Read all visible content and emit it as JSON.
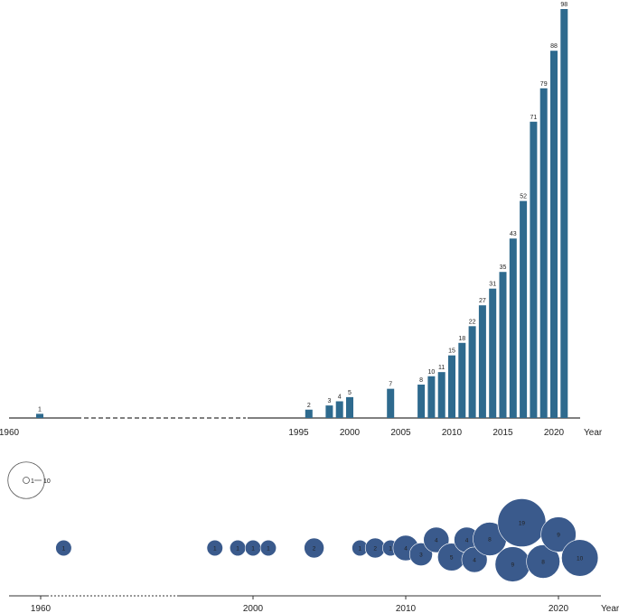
{
  "colors": {
    "bar": "#2e6a8e",
    "bubble": "#3a5a8c",
    "axis": "#333333",
    "text": "#222222",
    "legend_stroke": "#555555"
  },
  "chart_data": [
    {
      "type": "bar",
      "xlabel": "Year",
      "x_tick_labels": [
        "1960",
        "1995",
        "2000",
        "2005",
        "2010",
        "2015",
        "2020"
      ],
      "axis_break": {
        "from": 1960,
        "to": 1995,
        "style": "dashed"
      },
      "grid": false,
      "points": [
        {
          "x": 1961,
          "y": 1
        },
        {
          "x": 1996,
          "y": 2
        },
        {
          "x": 1998,
          "y": 3
        },
        {
          "x": 1999,
          "y": 4
        },
        {
          "x": 2000,
          "y": 5
        },
        {
          "x": 2004,
          "y": 7
        },
        {
          "x": 2007,
          "y": 8
        },
        {
          "x": 2008,
          "y": 10
        },
        {
          "x": 2009,
          "y": 11
        },
        {
          "x": 2010,
          "y": 15
        },
        {
          "x": 2011,
          "y": 18
        },
        {
          "x": 2012,
          "y": 22
        },
        {
          "x": 2013,
          "y": 27
        },
        {
          "x": 2014,
          "y": 31
        },
        {
          "x": 2015,
          "y": 35
        },
        {
          "x": 2016,
          "y": 43
        },
        {
          "x": 2017,
          "y": 52
        },
        {
          "x": 2018,
          "y": 71
        },
        {
          "x": 2019,
          "y": 79
        },
        {
          "x": 2020,
          "y": 88
        },
        {
          "x": 2021,
          "y": 98
        }
      ],
      "ylim": [
        0,
        98
      ]
    },
    {
      "type": "scatter",
      "xlabel": "Year",
      "x_tick_labels": [
        "1960",
        "2000",
        "2010",
        "2020"
      ],
      "axis_break": {
        "from": 1962,
        "to": 1996,
        "style": "dotted"
      },
      "size_legend": {
        "small": "1",
        "large": "10"
      },
      "grid": false,
      "points": [
        {
          "x": 1963,
          "count": 1,
          "label": "1"
        },
        {
          "x": 1997.5,
          "count": 1,
          "label": "1"
        },
        {
          "x": 1999,
          "count": 1,
          "label": "1"
        },
        {
          "x": 2000,
          "count": 1,
          "label": "1"
        },
        {
          "x": 2001,
          "count": 1,
          "label": "1"
        },
        {
          "x": 2004,
          "count": 2,
          "label": "2"
        },
        {
          "x": 2007,
          "count": 1,
          "label": "1"
        },
        {
          "x": 2008,
          "count": 2,
          "label": "2"
        },
        {
          "x": 2009,
          "count": 1,
          "label": "1"
        },
        {
          "x": 2010,
          "count": 4,
          "label": "4"
        },
        {
          "x": 2011,
          "count": 3,
          "label": "3"
        },
        {
          "x": 2012,
          "count": 4,
          "label": "4"
        },
        {
          "x": 2013,
          "count": 5,
          "label": "5"
        },
        {
          "x": 2014,
          "count": 4,
          "label": "4"
        },
        {
          "x": 2014.5,
          "count": 4,
          "label": "4"
        },
        {
          "x": 2015.5,
          "count": 8,
          "label": "8"
        },
        {
          "x": 2017,
          "count": 9,
          "label": "9"
        },
        {
          "x": 2017.6,
          "count": 19,
          "label": "19"
        },
        {
          "x": 2019,
          "count": 8,
          "label": "8"
        },
        {
          "x": 2020,
          "count": 9,
          "label": "9"
        },
        {
          "x": 2021.4,
          "count": 10,
          "label": "10"
        }
      ]
    }
  ]
}
